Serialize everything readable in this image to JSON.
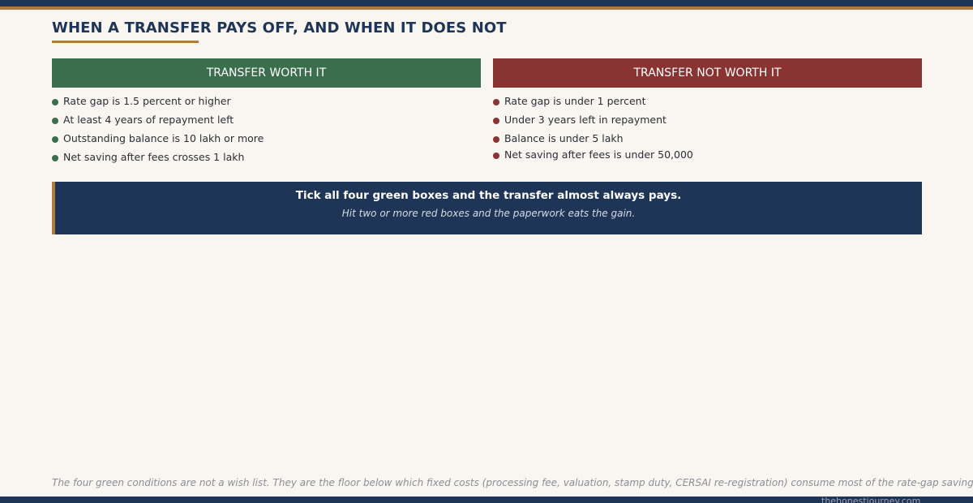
{
  "title": "WHEN A TRANSFER PAYS OFF, AND WHEN IT DOES NOT",
  "worth": {
    "heading": "TRANSFER WORTH IT",
    "items": [
      "Rate gap is 1.5 percent or higher",
      "At least 4 years of repayment left",
      "Outstanding balance is 10 lakh or more",
      "Net saving after fees crosses 1 lakh"
    ]
  },
  "not_worth": {
    "heading": "TRANSFER NOT WORTH IT",
    "items": [
      "Rate gap is under 1 percent",
      "Under 3 years left in repayment",
      "Balance is under 5 lakh",
      "Net saving after fees is under 50,000"
    ]
  },
  "callout": {
    "main": "Tick all four green boxes and the transfer almost always pays.",
    "sub": "Hit two or more red boxes and the paperwork eats the gain."
  },
  "footnote": "The four green conditions are not a wish list. They are the floor below which fixed costs (processing fee, valuation, stamp duty, CERSAI re-registration) consume most of the rate-gap saving.",
  "site": "thehonestjourney.com",
  "colors": {
    "navy": "#1e3557",
    "gold": "#b07a3e",
    "green": "#3a6e4c",
    "red": "#8a3333",
    "background": "#f9f6f1"
  }
}
